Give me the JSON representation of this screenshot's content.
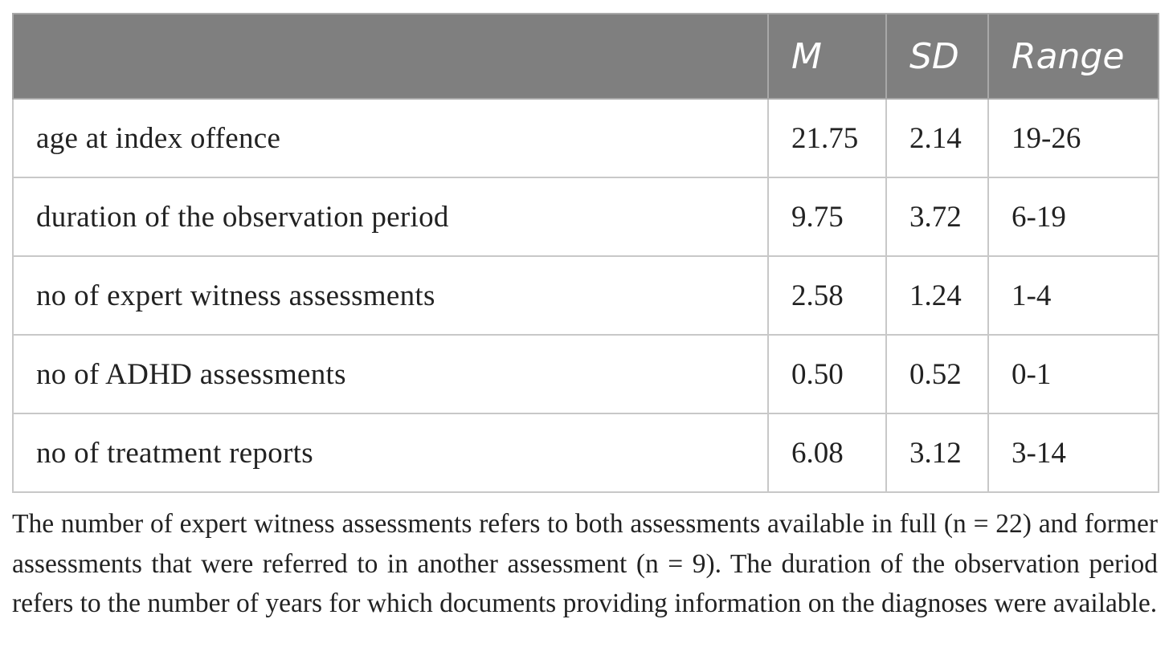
{
  "table": {
    "headers": [
      "",
      "M",
      "SD",
      "Range"
    ],
    "rows": [
      {
        "label": "age at index offence",
        "m": "21.75",
        "sd": "2.14",
        "range": "19-26"
      },
      {
        "label": "duration of the observation period",
        "m": "9.75",
        "sd": "3.72",
        "range": "6-19"
      },
      {
        "label": "no of expert witness assessments",
        "m": "2.58",
        "sd": "1.24",
        "range": "1-4"
      },
      {
        "label": "no of ADHD assessments",
        "m": "0.50",
        "sd": "0.52",
        "range": "0-1"
      },
      {
        "label": "no of treatment reports",
        "m": "6.08",
        "sd": "3.12",
        "range": "3-14"
      }
    ]
  },
  "footnote": "The number of expert witness assessments refers to both assessments available in full (n = 22) and former assessments that were referred to in another assessment (n = 9). The duration of the observation period refers to the number of years for which documents providing information on the diagnoses were available.",
  "colors": {
    "header_bg": "#7f7f7f",
    "header_text": "#ffffff",
    "border": "#c8c8c8",
    "body_text": "#222222"
  }
}
